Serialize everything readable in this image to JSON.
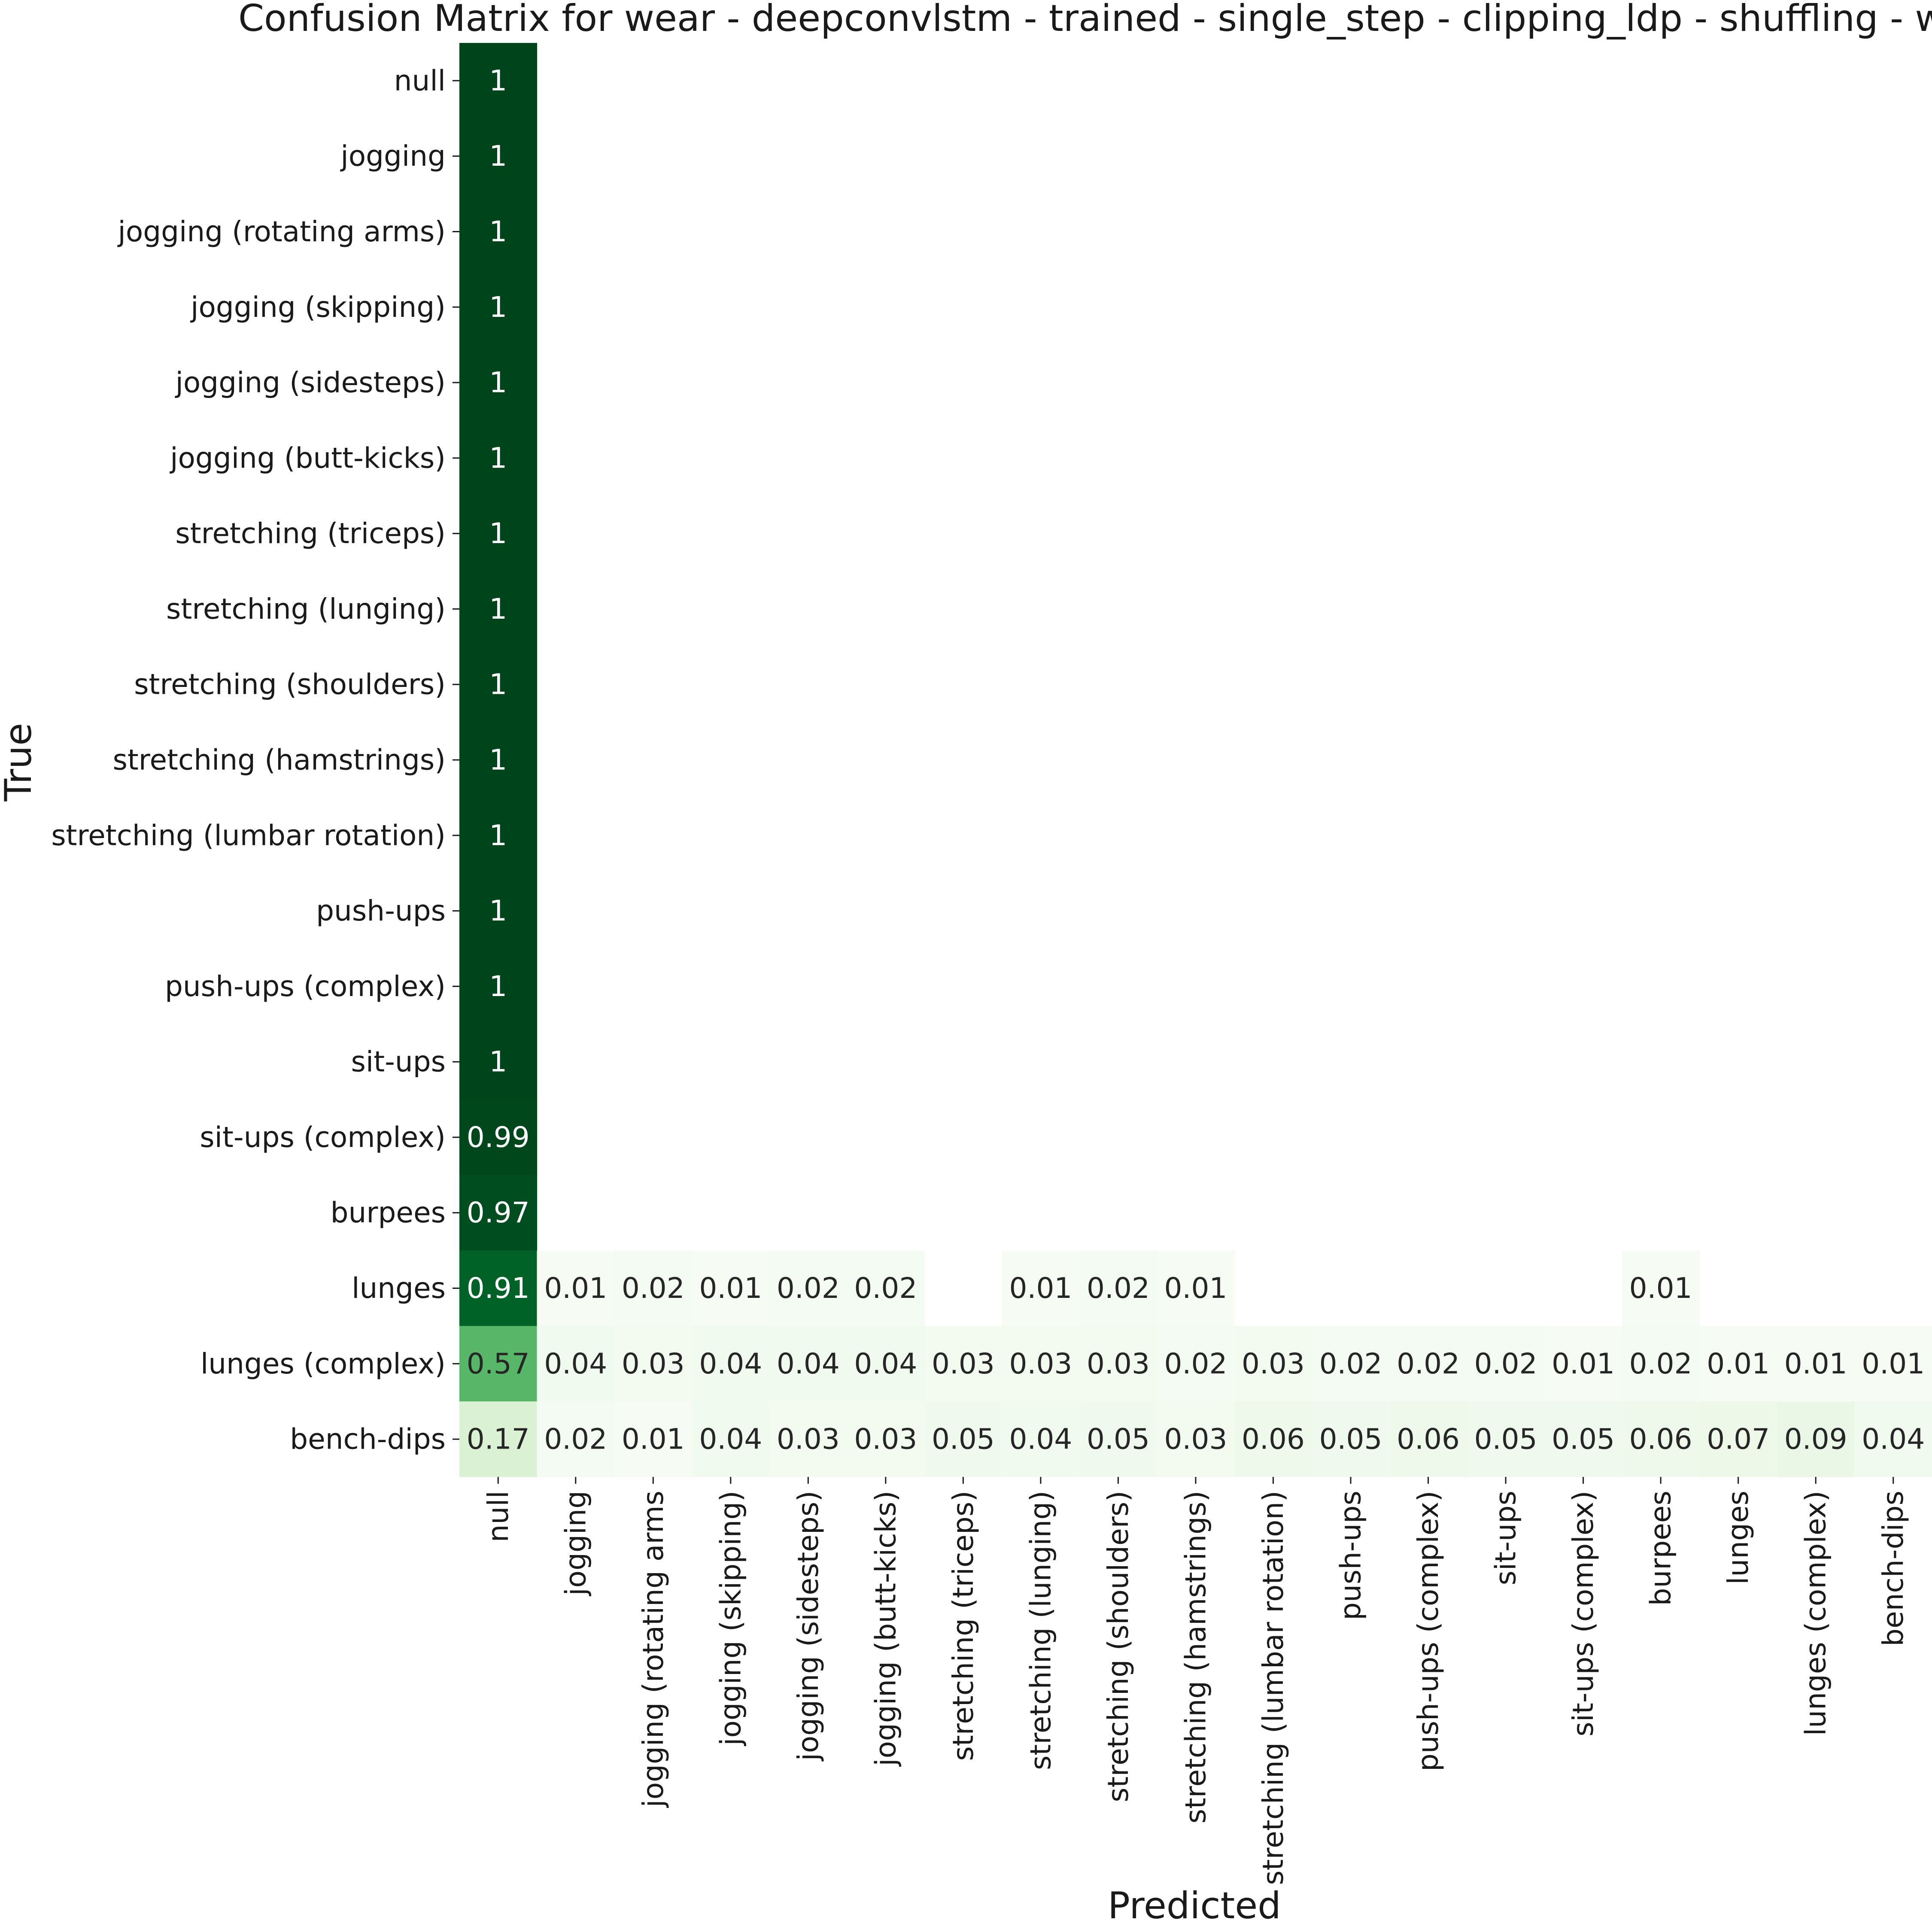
{
  "chart_data": {
    "type": "heatmap",
    "title": "Confusion Matrix for wear - deepconvlstm - trained - single_step - clipping_ldp - shuffling - waiting",
    "xlabel": "Predicted",
    "ylabel": "True",
    "colormap": "Greens",
    "value_range": [
      0,
      1
    ],
    "hide_zero_cells": true,
    "labels": [
      "null",
      "jogging",
      "jogging (rotating arms)",
      "jogging (skipping)",
      "jogging (sidesteps)",
      "jogging (butt-kicks)",
      "stretching (triceps)",
      "stretching (lunging)",
      "stretching (shoulders)",
      "stretching (hamstrings)",
      "stretching (lumbar rotation)",
      "push-ups",
      "push-ups (complex)",
      "sit-ups",
      "sit-ups (complex)",
      "burpees",
      "lunges",
      "lunges (complex)",
      "bench-dips"
    ],
    "y_labels_display": [
      "null",
      "jogging",
      "jogging (rotating arms)",
      "jogging (skipping)",
      "jogging (sidesteps)",
      "jogging (butt-kicks)",
      "stretching (triceps)",
      "stretching (lunging)",
      "stretching (shoulders)",
      "stretching (hamstrings)",
      "stretching (lumbar rotation)",
      "push-ups",
      "push-ups (complex)",
      "sit-ups",
      "sit-ups (complex)",
      "burpees",
      "lunges",
      "lunges (complex)",
      "bench-dips"
    ],
    "x_labels_display": [
      "null",
      "jogging",
      "jogging (rotating arms",
      "jogging (skipping)",
      "jogging (sidesteps)",
      "jogging (butt-kicks)",
      "stretching (triceps)",
      "stretching (lunging)",
      "stretching (shoulders)",
      "stretching (hamstrings)",
      "stretching (lumbar rotation)",
      "push-ups",
      "push-ups (complex)",
      "sit-ups",
      "sit-ups (complex)",
      "burpees",
      "lunges",
      "lunges (complex)",
      "bench-dips"
    ],
    "matrix": [
      [
        1,
        0,
        0,
        0,
        0,
        0,
        0,
        0,
        0,
        0,
        0,
        0,
        0,
        0,
        0,
        0,
        0,
        0,
        0
      ],
      [
        1,
        0,
        0,
        0,
        0,
        0,
        0,
        0,
        0,
        0,
        0,
        0,
        0,
        0,
        0,
        0,
        0,
        0,
        0
      ],
      [
        1,
        0,
        0,
        0,
        0,
        0,
        0,
        0,
        0,
        0,
        0,
        0,
        0,
        0,
        0,
        0,
        0,
        0,
        0
      ],
      [
        1,
        0,
        0,
        0,
        0,
        0,
        0,
        0,
        0,
        0,
        0,
        0,
        0,
        0,
        0,
        0,
        0,
        0,
        0
      ],
      [
        1,
        0,
        0,
        0,
        0,
        0,
        0,
        0,
        0,
        0,
        0,
        0,
        0,
        0,
        0,
        0,
        0,
        0,
        0
      ],
      [
        1,
        0,
        0,
        0,
        0,
        0,
        0,
        0,
        0,
        0,
        0,
        0,
        0,
        0,
        0,
        0,
        0,
        0,
        0
      ],
      [
        1,
        0,
        0,
        0,
        0,
        0,
        0,
        0,
        0,
        0,
        0,
        0,
        0,
        0,
        0,
        0,
        0,
        0,
        0
      ],
      [
        1,
        0,
        0,
        0,
        0,
        0,
        0,
        0,
        0,
        0,
        0,
        0,
        0,
        0,
        0,
        0,
        0,
        0,
        0
      ],
      [
        1,
        0,
        0,
        0,
        0,
        0,
        0,
        0,
        0,
        0,
        0,
        0,
        0,
        0,
        0,
        0,
        0,
        0,
        0
      ],
      [
        1,
        0,
        0,
        0,
        0,
        0,
        0,
        0,
        0,
        0,
        0,
        0,
        0,
        0,
        0,
        0,
        0,
        0,
        0
      ],
      [
        1,
        0,
        0,
        0,
        0,
        0,
        0,
        0,
        0,
        0,
        0,
        0,
        0,
        0,
        0,
        0,
        0,
        0,
        0
      ],
      [
        1,
        0,
        0,
        0,
        0,
        0,
        0,
        0,
        0,
        0,
        0,
        0,
        0,
        0,
        0,
        0,
        0,
        0,
        0
      ],
      [
        1,
        0,
        0,
        0,
        0,
        0,
        0,
        0,
        0,
        0,
        0,
        0,
        0,
        0,
        0,
        0,
        0,
        0,
        0
      ],
      [
        1,
        0,
        0,
        0,
        0,
        0,
        0,
        0,
        0,
        0,
        0,
        0,
        0,
        0,
        0,
        0,
        0,
        0,
        0
      ],
      [
        0.99,
        0,
        0,
        0,
        0,
        0,
        0,
        0,
        0,
        0,
        0,
        0,
        0,
        0,
        0,
        0,
        0,
        0,
        0
      ],
      [
        0.97,
        0,
        0,
        0,
        0,
        0,
        0,
        0,
        0,
        0,
        0,
        0,
        0,
        0,
        0,
        0,
        0,
        0,
        0
      ],
      [
        0.91,
        0.01,
        0.02,
        0.01,
        0.02,
        0.02,
        0,
        0.01,
        0.02,
        0.01,
        0,
        0,
        0,
        0,
        0,
        0.01,
        0,
        0,
        0
      ],
      [
        0.57,
        0.04,
        0.03,
        0.04,
        0.04,
        0.04,
        0.03,
        0.03,
        0.03,
        0.02,
        0.03,
        0.02,
        0.02,
        0.02,
        0.01,
        0.02,
        0.01,
        0.01,
        0.01
      ],
      [
        0.17,
        0.02,
        0.01,
        0.04,
        0.03,
        0.03,
        0.05,
        0.04,
        0.05,
        0.03,
        0.06,
        0.05,
        0.06,
        0.05,
        0.05,
        0.06,
        0.07,
        0.09,
        0.04
      ]
    ],
    "cell_labels": [
      [
        "1",
        "",
        "",
        "",
        "",
        "",
        "",
        "",
        "",
        "",
        "",
        "",
        "",
        "",
        "",
        "",
        "",
        "",
        ""
      ],
      [
        "1",
        "",
        "",
        "",
        "",
        "",
        "",
        "",
        "",
        "",
        "",
        "",
        "",
        "",
        "",
        "",
        "",
        "",
        ""
      ],
      [
        "1",
        "",
        "",
        "",
        "",
        "",
        "",
        "",
        "",
        "",
        "",
        "",
        "",
        "",
        "",
        "",
        "",
        "",
        ""
      ],
      [
        "1",
        "",
        "",
        "",
        "",
        "",
        "",
        "",
        "",
        "",
        "",
        "",
        "",
        "",
        "",
        "",
        "",
        "",
        ""
      ],
      [
        "1",
        "",
        "",
        "",
        "",
        "",
        "",
        "",
        "",
        "",
        "",
        "",
        "",
        "",
        "",
        "",
        "",
        "",
        ""
      ],
      [
        "1",
        "",
        "",
        "",
        "",
        "",
        "",
        "",
        "",
        "",
        "",
        "",
        "",
        "",
        "",
        "",
        "",
        "",
        ""
      ],
      [
        "1",
        "",
        "",
        "",
        "",
        "",
        "",
        "",
        "",
        "",
        "",
        "",
        "",
        "",
        "",
        "",
        "",
        "",
        ""
      ],
      [
        "1",
        "",
        "",
        "",
        "",
        "",
        "",
        "",
        "",
        "",
        "",
        "",
        "",
        "",
        "",
        "",
        "",
        "",
        ""
      ],
      [
        "1",
        "",
        "",
        "",
        "",
        "",
        "",
        "",
        "",
        "",
        "",
        "",
        "",
        "",
        "",
        "",
        "",
        "",
        ""
      ],
      [
        "1",
        "",
        "",
        "",
        "",
        "",
        "",
        "",
        "",
        "",
        "",
        "",
        "",
        "",
        "",
        "",
        "",
        "",
        ""
      ],
      [
        "1",
        "",
        "",
        "",
        "",
        "",
        "",
        "",
        "",
        "",
        "",
        "",
        "",
        "",
        "",
        "",
        "",
        "",
        ""
      ],
      [
        "1",
        "",
        "",
        "",
        "",
        "",
        "",
        "",
        "",
        "",
        "",
        "",
        "",
        "",
        "",
        "",
        "",
        "",
        ""
      ],
      [
        "1",
        "",
        "",
        "",
        "",
        "",
        "",
        "",
        "",
        "",
        "",
        "",
        "",
        "",
        "",
        "",
        "",
        "",
        ""
      ],
      [
        "1",
        "",
        "",
        "",
        "",
        "",
        "",
        "",
        "",
        "",
        "",
        "",
        "",
        "",
        "",
        "",
        "",
        "",
        ""
      ],
      [
        "0.99",
        "",
        "",
        "",
        "",
        "",
        "",
        "",
        "",
        "",
        "",
        "",
        "",
        "",
        "",
        "",
        "",
        "",
        ""
      ],
      [
        "0.97",
        "",
        "",
        "",
        "",
        "",
        "",
        "",
        "",
        "",
        "",
        "",
        "",
        "",
        "",
        "",
        "",
        "",
        ""
      ],
      [
        "0.91",
        "0.01",
        "0.02",
        "0.01",
        "0.02",
        "0.02",
        "",
        "0.01",
        "0.02",
        "0.01",
        "",
        "",
        "",
        "",
        "",
        "0.01",
        "",
        "",
        ""
      ],
      [
        "0.57",
        "0.04",
        "0.03",
        "0.04",
        "0.04",
        "0.04",
        "0.03",
        "0.03",
        "0.03",
        "0.02",
        "0.03",
        "0.02",
        "0.02",
        "0.02",
        "0.01",
        "0.02",
        "0.01",
        "0.01",
        "0.01"
      ],
      [
        "0.17",
        "0.02",
        "0.01",
        "0.04",
        "0.03",
        "0.03",
        "0.05",
        "0.04",
        "0.05",
        "0.03",
        "0.06",
        "0.05",
        "0.06",
        "0.05",
        "0.05",
        "0.06",
        "0.07",
        "0.09",
        "0.04"
      ]
    ],
    "grid": false,
    "colorbar": false
  }
}
